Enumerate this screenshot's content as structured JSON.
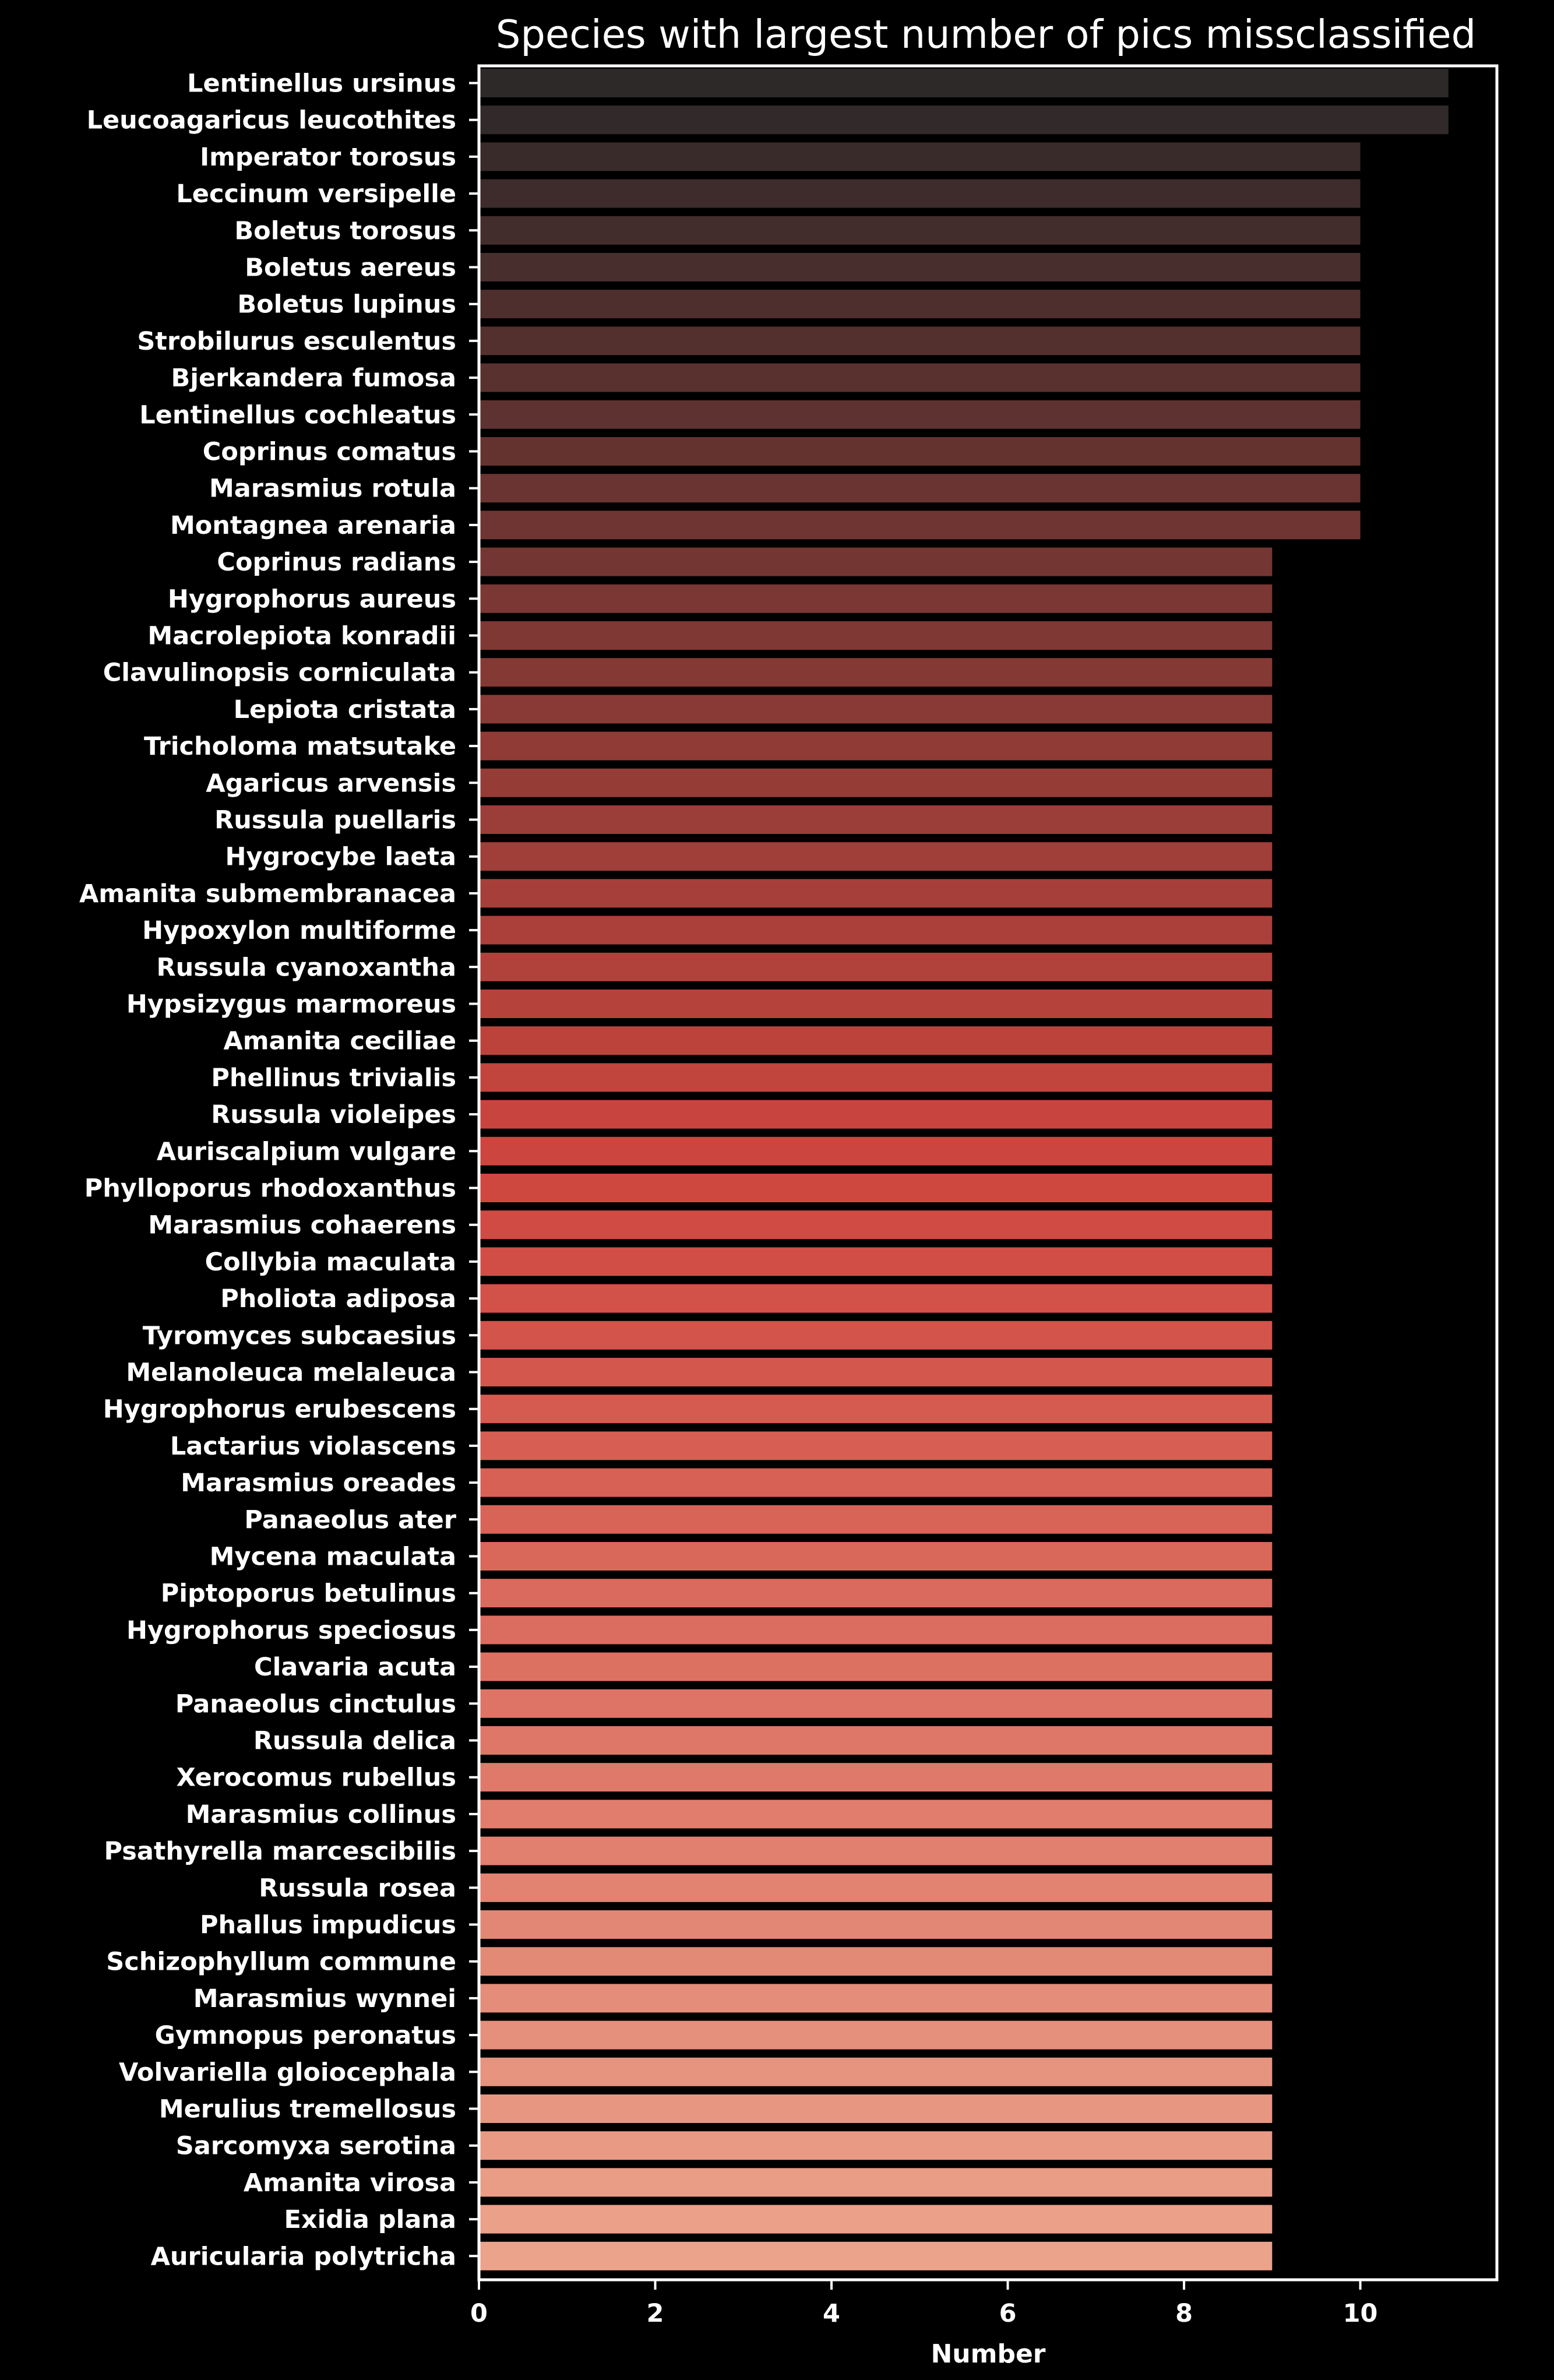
{
  "chart_data": {
    "type": "bar",
    "orientation": "horizontal",
    "title": "Species with largest number of pics missclassified",
    "xlabel": "Number",
    "ylabel": "",
    "xlim": [
      0,
      11.55
    ],
    "xticks": [
      0,
      2,
      4,
      6,
      8,
      10
    ],
    "grid": false,
    "legend": "none",
    "colors": {
      "background": "#000000",
      "text": "#ffffff",
      "spine": "#ffffff",
      "bar_start": "#2d2929",
      "bar_mid": "#cf463f",
      "bar_end": "#eba38c"
    },
    "categories": [
      "Lentinellus ursinus",
      "Leucoagaricus leucothites",
      "Imperator torosus",
      "Leccinum versipelle",
      "Boletus torosus",
      "Boletus aereus",
      "Boletus lupinus",
      "Strobilurus esculentus",
      "Bjerkandera fumosa",
      "Lentinellus cochleatus",
      "Coprinus comatus",
      "Marasmius rotula",
      "Montagnea arenaria",
      "Coprinus radians",
      "Hygrophorus aureus",
      "Macrolepiota konradii",
      "Clavulinopsis corniculata",
      "Lepiota cristata",
      "Tricholoma matsutake",
      "Agaricus arvensis",
      "Russula puellaris",
      "Hygrocybe laeta",
      "Amanita submembranacea",
      "Hypoxylon multiforme",
      "Russula cyanoxantha",
      "Hypsizygus marmoreus",
      "Amanita ceciliae",
      "Phellinus trivialis",
      "Russula violeipes",
      "Auriscalpium vulgare",
      "Phylloporus rhodoxanthus",
      "Marasmius cohaerens",
      "Collybia maculata",
      "Pholiota adiposa",
      "Tyromyces subcaesius",
      "Melanoleuca melaleuca",
      "Hygrophorus erubescens",
      "Lactarius violascens",
      "Marasmius oreades",
      "Panaeolus ater",
      "Mycena maculata",
      "Piptoporus betulinus",
      "Hygrophorus speciosus",
      "Clavaria acuta",
      "Panaeolus cinctulus",
      "Russula delica",
      "Xerocomus rubellus",
      "Marasmius collinus",
      "Psathyrella marcescibilis",
      "Russula rosea",
      "Phallus impudicus",
      "Schizophyllum commune",
      "Marasmius wynnei",
      "Gymnopus peronatus",
      "Volvariella gloiocephala",
      "Merulius tremellosus",
      "Sarcomyxa serotina",
      "Amanita virosa",
      "Exidia plana",
      "Auricularia polytricha"
    ],
    "values": [
      11,
      11,
      10,
      10,
      10,
      10,
      10,
      10,
      10,
      10,
      10,
      10,
      10,
      9,
      9,
      9,
      9,
      9,
      9,
      9,
      9,
      9,
      9,
      9,
      9,
      9,
      9,
      9,
      9,
      9,
      9,
      9,
      9,
      9,
      9,
      9,
      9,
      9,
      9,
      9,
      9,
      9,
      9,
      9,
      9,
      9,
      9,
      9,
      9,
      9,
      9,
      9,
      9,
      9,
      9,
      9,
      9,
      9,
      9,
      9
    ]
  }
}
